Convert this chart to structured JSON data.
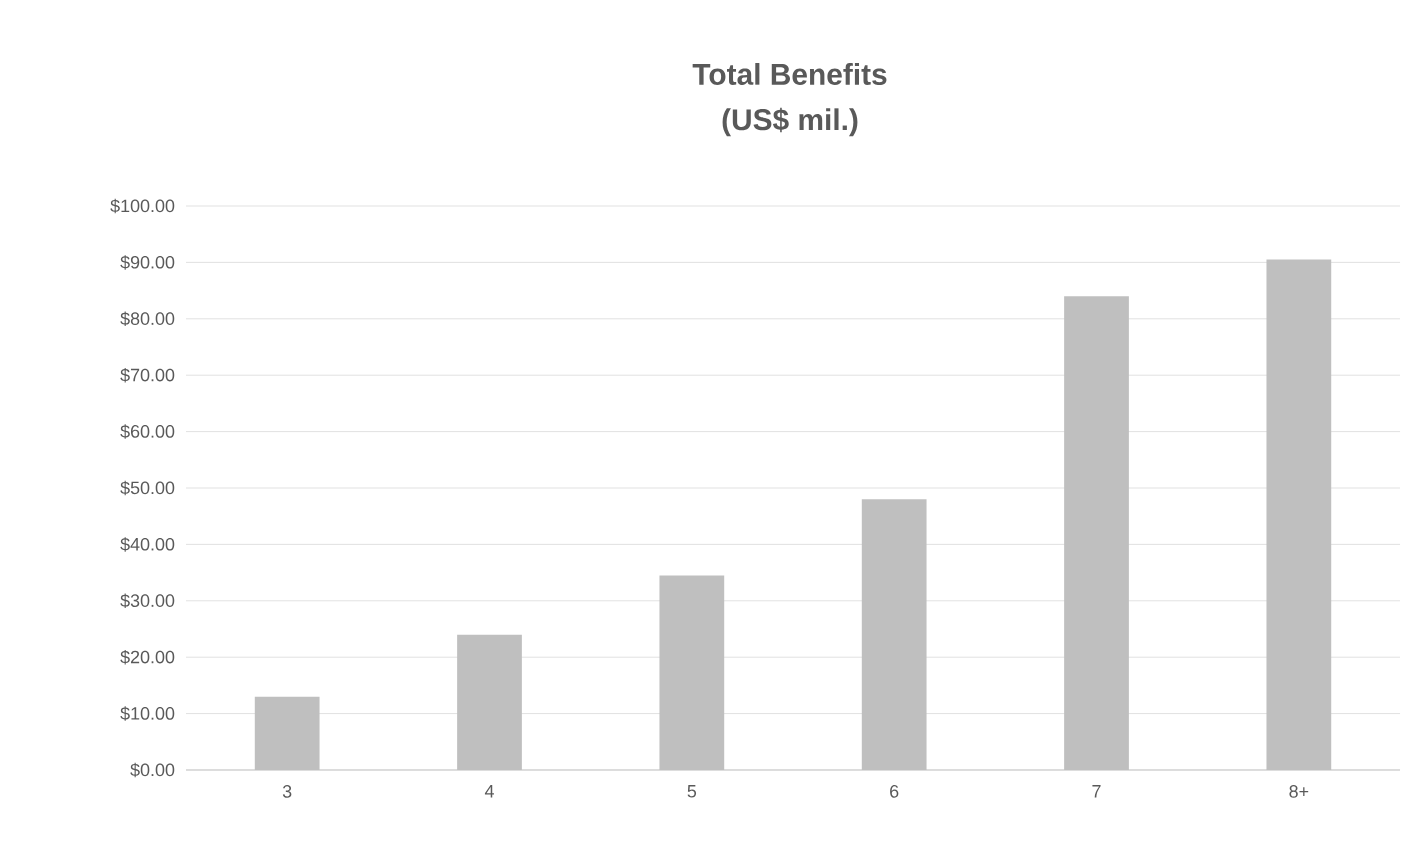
{
  "chart_data": {
    "type": "bar",
    "title": "Total Benefits",
    "subtitle": "(US$ mil.)",
    "categories": [
      "3",
      "4",
      "5",
      "6",
      "7",
      "8+"
    ],
    "values": [
      13,
      24,
      34.5,
      48,
      84,
      90.5
    ],
    "color": "#bfbfbf",
    "ylim": [
      0,
      100
    ],
    "yticks": [
      {
        "value": 0,
        "label": "$0.00"
      },
      {
        "value": 10,
        "label": "$10.00"
      },
      {
        "value": 20,
        "label": "$20.00"
      },
      {
        "value": 30,
        "label": "$30.00"
      },
      {
        "value": 40,
        "label": "$40.00"
      },
      {
        "value": 50,
        "label": "$50.00"
      },
      {
        "value": 60,
        "label": "$60.00"
      },
      {
        "value": 70,
        "label": "$70.00"
      },
      {
        "value": 80,
        "label": "$80.00"
      },
      {
        "value": 90,
        "label": "$90.00"
      },
      {
        "value": 100,
        "label": "$100.00"
      }
    ],
    "grid": "y"
  }
}
